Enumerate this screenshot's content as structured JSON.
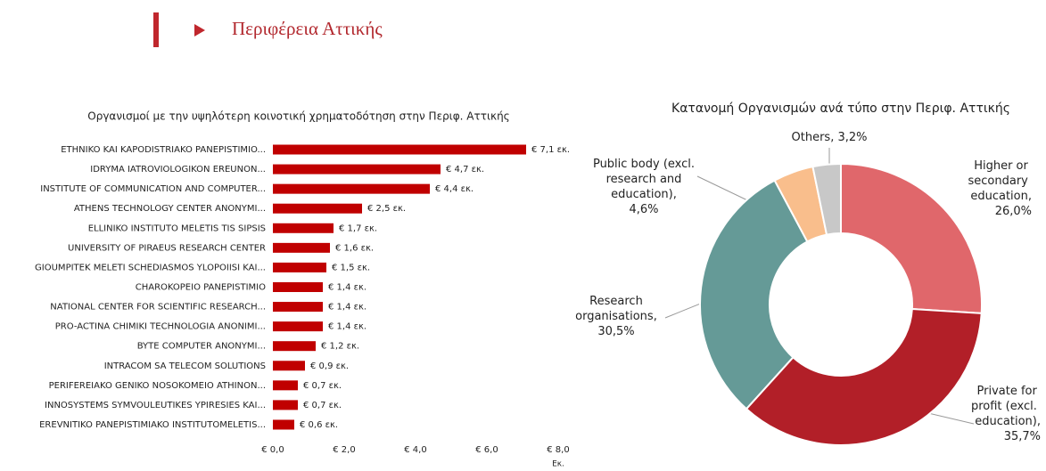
{
  "header": {
    "title": "Περιφέρεια Αττικής"
  },
  "chart_data": [
    {
      "type": "hbar",
      "title": "Οργανισμοί με την υψηλότερη κοινοτική χρηματοδότηση στην Περιφ. Αττικής",
      "x_label": "Εκ.",
      "categories": [
        "ETHNIKO KAI KAPODISTRIAKO PANEPISTIMIO...",
        "IDRYMA IATROVIOLOGIKON EREUNON...",
        "INSTITUTE OF COMMUNICATION AND COMPUTER...",
        "ATHENS TECHNOLOGY CENTER ANONYMI...",
        "ELLINIKO INSTITUTO MELETIS TIS SIPSIS",
        "UNIVERSITY OF PIRAEUS RESEARCH CENTER",
        "GIOUMPITEK MELETI SCHEDIASMOS YLOPOIISI KAI...",
        "CHAROKOPEIO PANEPISTIMIO",
        "NATIONAL CENTER FOR SCIENTIFIC RESEARCH...",
        "PRO-ACTINA CHIMIKI TECHNOLOGIA ANONIMI...",
        "BYTE COMPUTER ANONYMI...",
        "INTRACOM SA TELECOM SOLUTIONS",
        "PERIFEREIAKO GENIKO NOSOKOMEIO ATHINON...",
        "INNOSYSTEMS SYMVOULEUTIKES YPIRESIES KAI...",
        "EREVNITIKO PANEPISTIMIAKO INSTITUTOMELETIS..."
      ],
      "values": [
        7.1,
        4.7,
        4.4,
        2.5,
        1.7,
        1.6,
        1.5,
        1.4,
        1.4,
        1.4,
        1.2,
        0.9,
        0.7,
        0.7,
        0.6
      ],
      "value_labels": [
        "€ 7,1 εκ.",
        "€ 4,7 εκ.",
        "€ 4,4 εκ.",
        "€ 2,5 εκ.",
        "€ 1,7 εκ.",
        "€ 1,6 εκ.",
        "€ 1,5 εκ.",
        "€ 1,4 εκ.",
        "€ 1,4 εκ.",
        "€ 1,4 εκ.",
        "€ 1,2 εκ.",
        "€ 0,9 εκ.",
        "€ 0,7 εκ.",
        "€ 0,7 εκ.",
        "€ 0,6 εκ."
      ],
      "color": "#c00000",
      "xlim": [
        0,
        8
      ],
      "xticks": [
        {
          "value": 0,
          "label": "€ 0,0"
        },
        {
          "value": 2,
          "label": "€ 2,0"
        },
        {
          "value": 4,
          "label": "€ 4,0"
        },
        {
          "value": 6,
          "label": "€ 6,0"
        },
        {
          "value": 8,
          "label": "€ 8,0"
        }
      ]
    },
    {
      "type": "donut",
      "title": "Κατανομή Οργανισμών ανά τύπο στην Περιφ. Αττικής",
      "categories": [
        "Higher or secondary education",
        "Private for profit (excl. education)",
        "Research organisations",
        "Public body (excl. research and education)",
        "Others"
      ],
      "values": [
        26.0,
        35.7,
        30.5,
        4.6,
        3.2
      ],
      "value_labels": [
        "26,0%",
        "35,7%",
        "30,5%",
        "4,6%",
        "3,2%"
      ],
      "colors": [
        "#e0676b",
        "#b21f28",
        "#659a97",
        "#f9be8c",
        "#c8c8c8"
      ]
    }
  ]
}
